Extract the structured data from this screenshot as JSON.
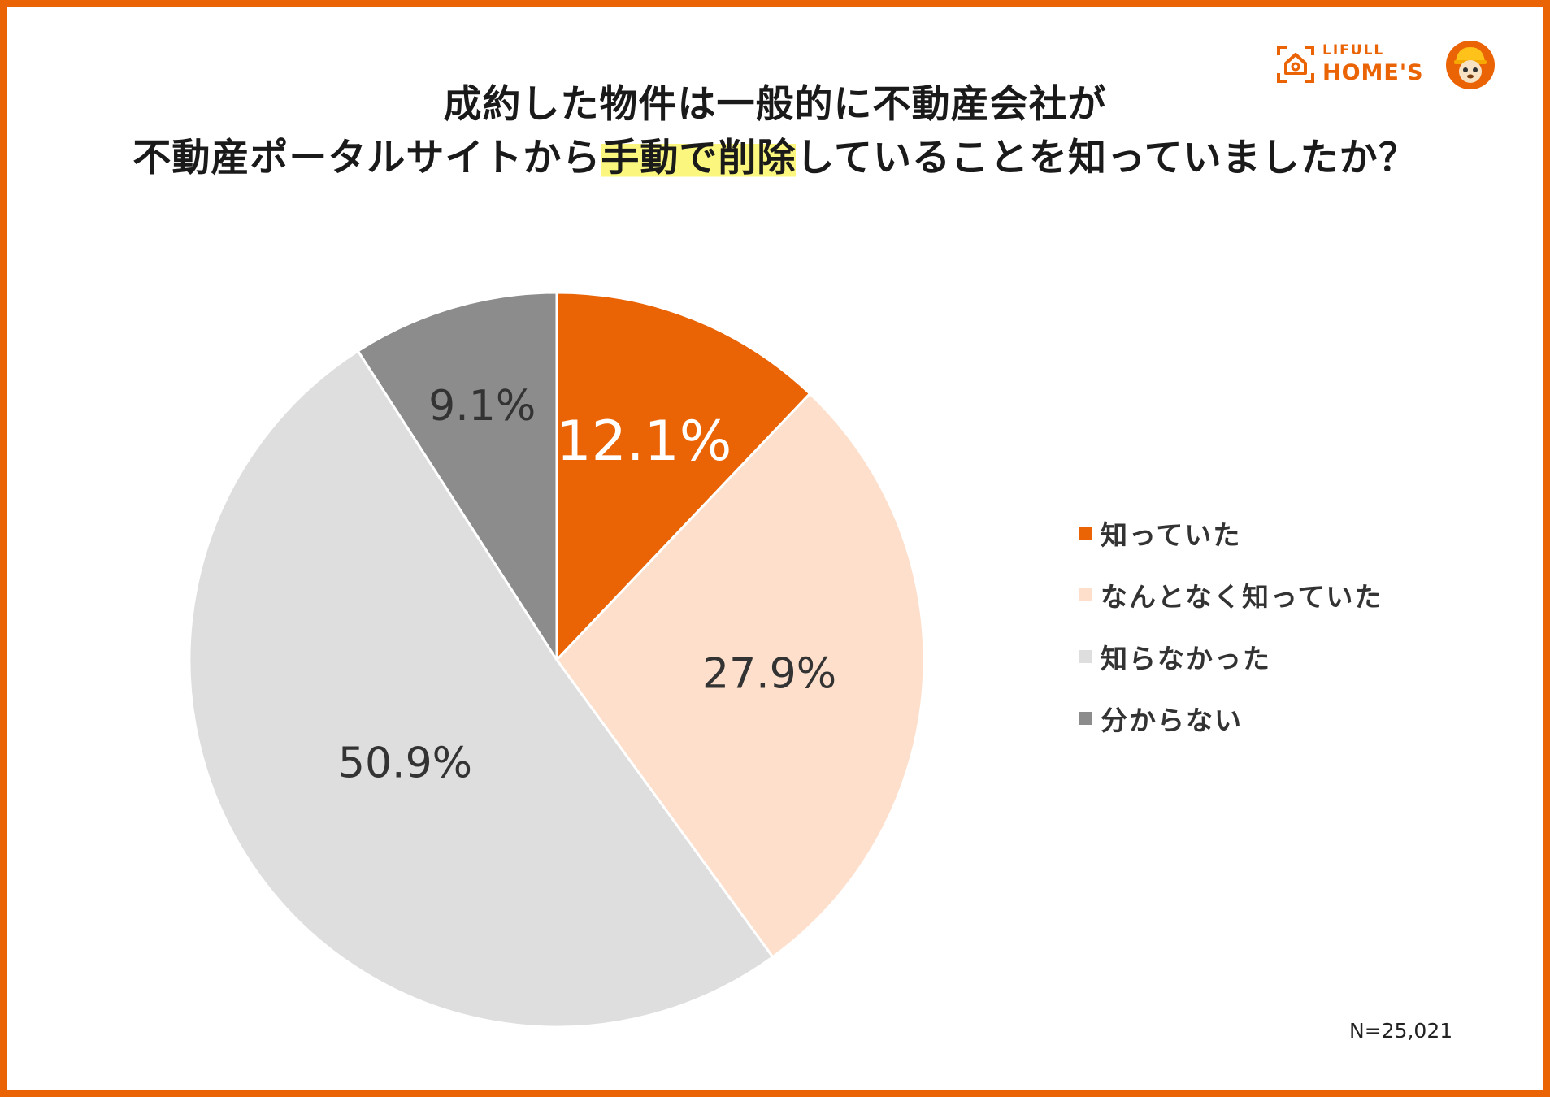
{
  "title": {
    "line1": "成約した物件は一般的に不動産会社が",
    "line2_before": "不動産ポータルサイトから",
    "line2_highlight": "手動で削除",
    "line2_after": "していることを知っていましたか？"
  },
  "logo": {
    "small": "LIFULL",
    "big": "HOME'S"
  },
  "note": "N=25,021",
  "chart_data": {
    "type": "pie",
    "title": "成約した物件は一般的に不動産会社が不動産ポータルサイトから手動で削除していることを知っていましたか？",
    "legend_position": "right",
    "slices": [
      {
        "label": "知っていた",
        "value": 12.1,
        "display": "12.1%",
        "color": "#EA6305",
        "text_color": "#ffffff"
      },
      {
        "label": "なんとなく知っていた",
        "value": 27.9,
        "display": "27.9%",
        "color": "#FDDFCB",
        "text_color": "#333333"
      },
      {
        "label": "知らなかった",
        "value": 50.9,
        "display": "50.9%",
        "color": "#DEDEDE",
        "text_color": "#333333"
      },
      {
        "label": "分からない",
        "value": 9.1,
        "display": "9.1%",
        "color": "#8C8C8C",
        "text_color": "#333333"
      }
    ],
    "note": "N=25,021"
  }
}
